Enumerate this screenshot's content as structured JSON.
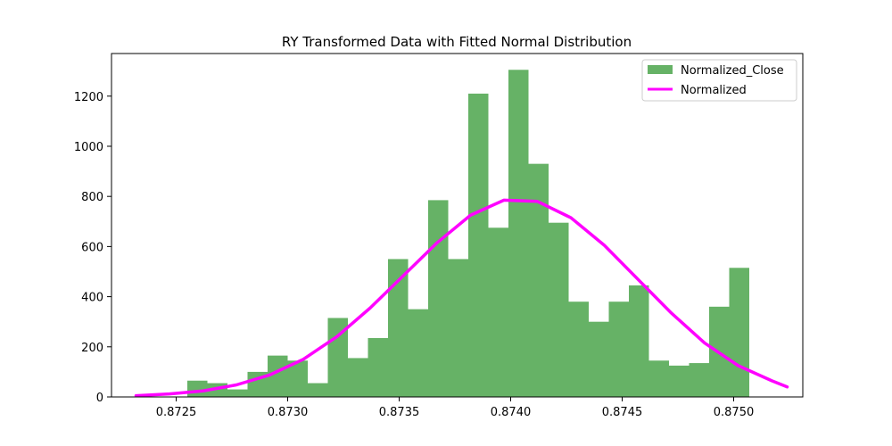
{
  "chart_data": {
    "type": "bar",
    "title": "RY Transformed Data with Fitted Normal Distribution",
    "xlabel": "",
    "ylabel": "",
    "xlim": [
      0.87221,
      0.87531
    ],
    "ylim": [
      0,
      1370
    ],
    "x_ticks": [
      0.8725,
      0.873,
      0.8735,
      0.874,
      0.8745,
      0.875
    ],
    "x_tick_labels": [
      "0.8725",
      "0.8730",
      "0.8735",
      "0.8740",
      "0.8745",
      "0.8750"
    ],
    "y_ticks": [
      0,
      200,
      400,
      600,
      800,
      1000,
      1200
    ],
    "y_tick_labels": [
      "0",
      "200",
      "400",
      "600",
      "800",
      "1000",
      "1200"
    ],
    "grid": false,
    "legend_position": "top-right",
    "bar_color": "#66b266",
    "line_color": "#ff00ff",
    "series": [
      {
        "name": "Normalized_Close",
        "kind": "histogram",
        "bin_edges": [
          0.87255,
          0.87264,
          0.87273,
          0.87282,
          0.87291,
          0.873,
          0.87309,
          0.87318,
          0.87327,
          0.87336,
          0.87345,
          0.87354,
          0.87363,
          0.87372,
          0.87381,
          0.8739,
          0.87399,
          0.87408,
          0.87417,
          0.87426,
          0.87435,
          0.87444,
          0.87453,
          0.87462,
          0.87471,
          0.8748,
          0.87489,
          0.87498,
          0.87507
        ],
        "counts": [
          65,
          55,
          30,
          100,
          165,
          145,
          55,
          315,
          155,
          235,
          550,
          350,
          785,
          550,
          1210,
          675,
          1305,
          930,
          695,
          380,
          300,
          380,
          445,
          145,
          125,
          135,
          360,
          515
        ]
      },
      {
        "name": "Normalized",
        "kind": "line",
        "x": [
          0.87232,
          0.87247,
          0.87262,
          0.87277,
          0.87292,
          0.87307,
          0.87322,
          0.87337,
          0.87352,
          0.87367,
          0.87382,
          0.87397,
          0.87412,
          0.87427,
          0.87442,
          0.87457,
          0.87472,
          0.87487,
          0.87502,
          0.87517,
          0.87524
        ],
        "y": [
          5,
          12,
          24,
          48,
          88,
          150,
          240,
          355,
          485,
          615,
          725,
          785,
          780,
          715,
          605,
          470,
          335,
          215,
          125,
          65,
          40
        ]
      }
    ]
  }
}
